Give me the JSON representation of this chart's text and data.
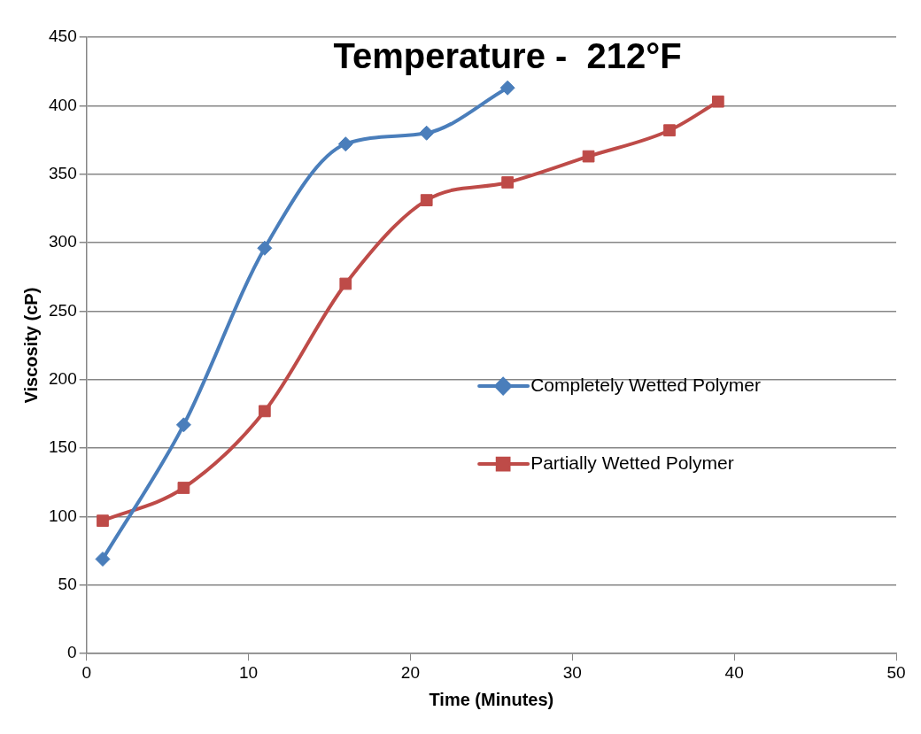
{
  "chart_data": {
    "type": "line",
    "title": "Temperature -  212°F",
    "xlabel": "Time (Minutes)",
    "ylabel": "Viscosity (cP)",
    "xlim": [
      0,
      50
    ],
    "xticks": [
      0,
      10,
      20,
      30,
      40,
      50
    ],
    "ylim": [
      0,
      450
    ],
    "yticks": [
      0,
      50,
      100,
      150,
      200,
      250,
      300,
      350,
      400,
      450
    ],
    "grid": "y",
    "legend": "right",
    "series": [
      {
        "name": "Completely Wetted Polymer",
        "color": "#4a7ebb",
        "marker": "diamond",
        "x": [
          1,
          6,
          11,
          16,
          21,
          26
        ],
        "values": [
          69,
          167,
          296,
          372,
          380,
          413
        ]
      },
      {
        "name": "Partially Wetted Polymer",
        "color": "#be4b48",
        "marker": "square",
        "x": [
          1,
          6,
          11,
          16,
          21,
          26,
          31,
          36,
          39
        ],
        "values": [
          97,
          121,
          177,
          270,
          331,
          344,
          363,
          382,
          403
        ]
      }
    ]
  }
}
